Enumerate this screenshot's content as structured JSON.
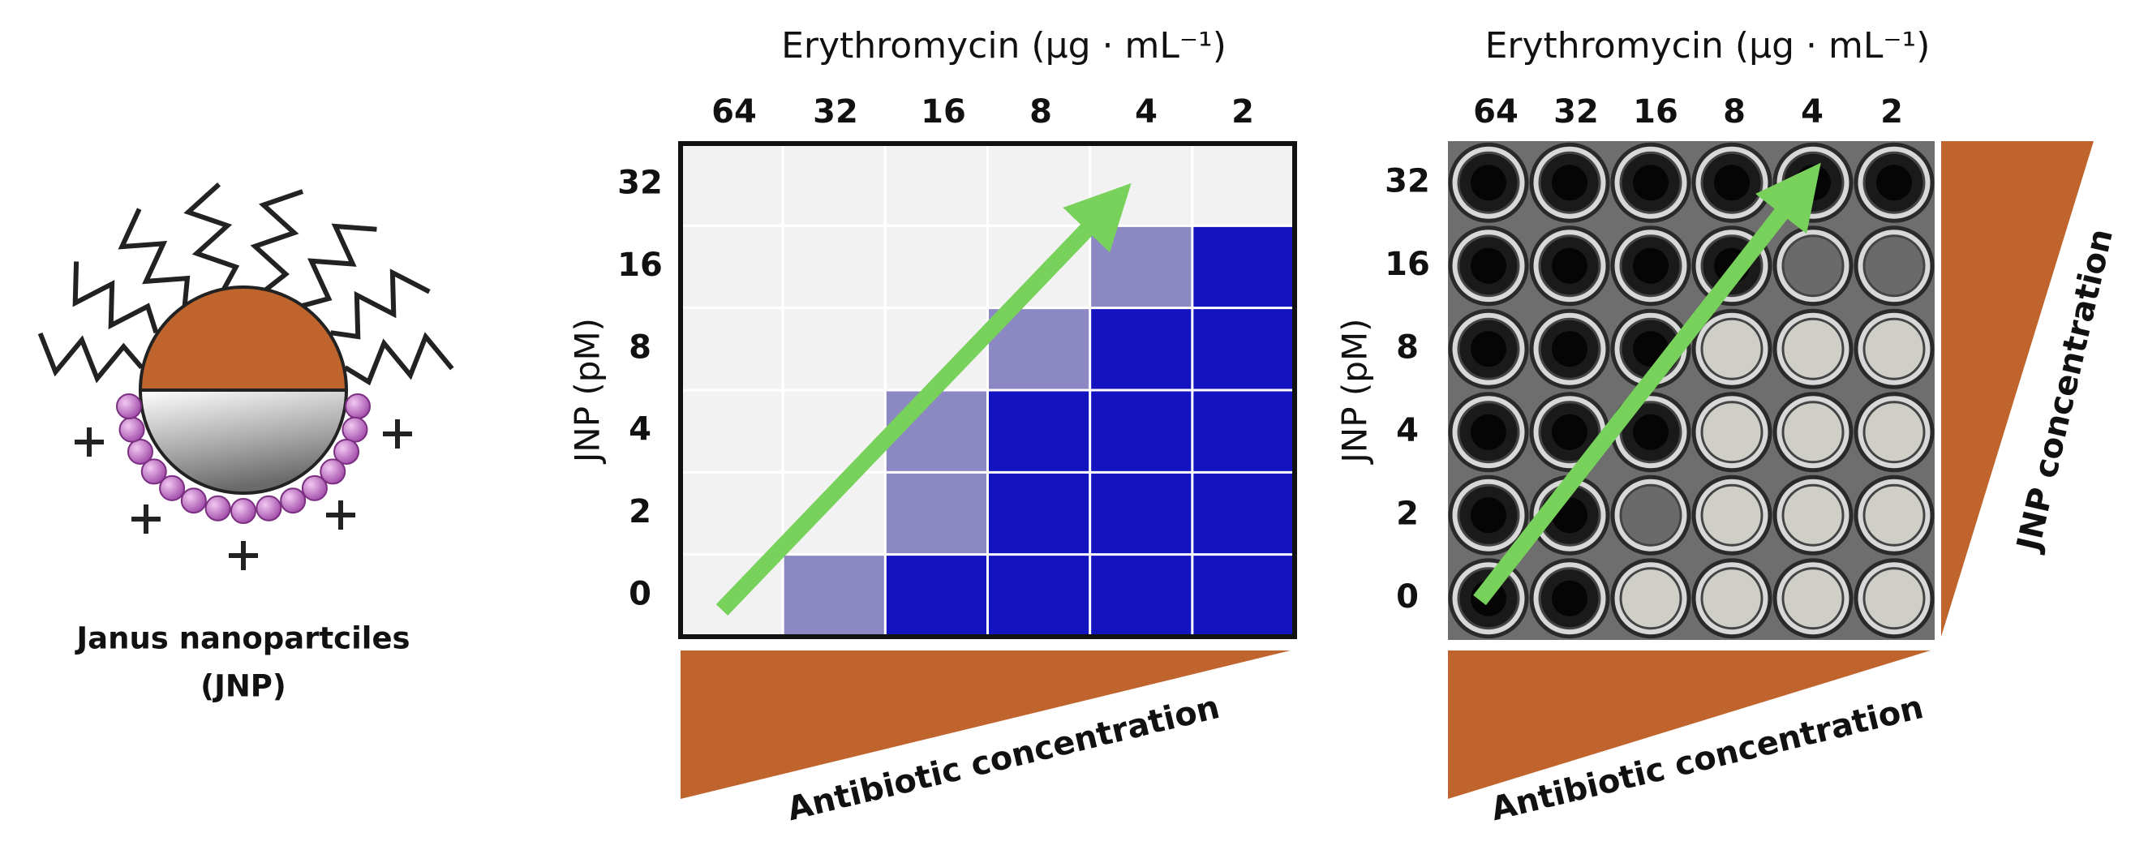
{
  "nanoparticle": {
    "caption": [
      "Janus nanopartciles",
      "(JNP)"
    ]
  },
  "heatmap": {
    "x_title": "Erythromycin (μg · mL⁻¹)",
    "columns": [
      64,
      32,
      16,
      8,
      4,
      2
    ],
    "rows": [
      32,
      16,
      8,
      4,
      2,
      0
    ],
    "y_title": "JNP (pM)",
    "x_gradient": "Antibiotic concentration"
  },
  "plate": {
    "x_title": "Erythromycin (μg · mL⁻¹)",
    "columns": [
      64,
      32,
      16,
      8,
      4,
      2
    ],
    "rows": [
      32,
      16,
      8,
      4,
      2,
      0
    ],
    "y_title": "JNP (pM)",
    "x_gradient": "Antibiotic concentration",
    "y_gradient": "JNP concentration"
  }
}
